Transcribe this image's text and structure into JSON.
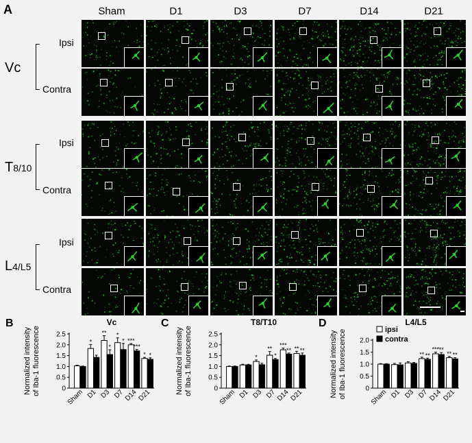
{
  "panel_a": {
    "letter": "A",
    "columns": [
      "Sham",
      "D1",
      "D3",
      "D7",
      "D14",
      "D21"
    ],
    "regions": [
      {
        "name": "Vc",
        "sub": ""
      },
      {
        "name": "T",
        "sub": "8/10"
      },
      {
        "name": "L",
        "sub": "4/L5"
      }
    ],
    "rows": [
      "Ipsi",
      "Contra"
    ],
    "colors": {
      "microglia": "#2ed22e",
      "background": "#050805",
      "frame": "#ffffff"
    }
  },
  "chart_data": [
    {
      "panel": "B",
      "type": "bar",
      "title": "Vc",
      "ylabel": "Normalized intensity of Iba-1 fluorescence",
      "categories": [
        "Sham",
        "D1",
        "D3",
        "D7",
        "D14",
        "D21"
      ],
      "ylim": [
        0,
        2.5
      ],
      "yticks": [
        "0",
        "0.5",
        "1.0",
        "1.5",
        "2.0",
        "2.5"
      ],
      "series": [
        {
          "name": "ipsi",
          "color": "#ffffff",
          "values": [
            1.03,
            1.83,
            2.2,
            2.1,
            2.0,
            1.37
          ],
          "errors": [
            0.03,
            0.18,
            0.22,
            0.22,
            0.06,
            0.05
          ],
          "sig": [
            "",
            "*",
            "**",
            "*",
            "***",
            "*"
          ]
        },
        {
          "name": "contra",
          "color": "#000000",
          "values": [
            1.0,
            1.42,
            1.55,
            1.78,
            1.72,
            1.33
          ],
          "errors": [
            0.02,
            0.1,
            0.22,
            0.28,
            0.07,
            0.07
          ],
          "sig": [
            "",
            "",
            "*",
            "*",
            "***",
            "*"
          ]
        }
      ]
    },
    {
      "panel": "C",
      "type": "bar",
      "title": "T8/T10",
      "ylabel": "Normalized intensity of Iba-1 fluorescence",
      "categories": [
        "Sham",
        "D1",
        "D3",
        "D7",
        "D14",
        "D21"
      ],
      "ylim": [
        0,
        2.5
      ],
      "yticks": [
        "0",
        "0.5",
        "1.0",
        "1.5",
        "2.0",
        "2.5"
      ],
      "series": [
        {
          "name": "ipsi",
          "color": "#ffffff",
          "values": [
            1.0,
            1.07,
            1.23,
            1.52,
            1.77,
            1.6
          ],
          "errors": [
            0.02,
            0.03,
            0.07,
            0.17,
            0.08,
            0.1
          ],
          "sig": [
            "",
            "",
            "*",
            "**",
            "***",
            "**"
          ]
        },
        {
          "name": "contra",
          "color": "#000000",
          "values": [
            1.0,
            1.07,
            1.08,
            1.32,
            1.57,
            1.52
          ],
          "errors": [
            0.02,
            0.03,
            0.07,
            0.05,
            0.05,
            0.1
          ],
          "sig": [
            "",
            "",
            "",
            "*",
            "**",
            "**"
          ]
        }
      ]
    },
    {
      "panel": "D",
      "type": "bar",
      "title": "L4/L5",
      "ylabel": "Normalized intensity of Iba-1 fluorescence",
      "categories": [
        "Sham",
        "D1",
        "D3",
        "D7",
        "D14",
        "D21"
      ],
      "ylim": [
        0,
        2.0
      ],
      "yticks": [
        "0",
        "0.5",
        "1.0",
        "1.5",
        "2.0"
      ],
      "legend": [
        "ipsi",
        "contra"
      ],
      "legend_position": "top-left",
      "series": [
        {
          "name": "ipsi",
          "color": "#ffffff",
          "values": [
            1.0,
            0.98,
            1.05,
            1.23,
            1.43,
            1.27
          ],
          "errors": [
            0.02,
            0.05,
            0.05,
            0.06,
            0.07,
            0.05
          ],
          "sig": [
            "",
            "",
            "",
            "**",
            "***",
            "**"
          ]
        },
        {
          "name": "contra",
          "color": "#000000",
          "values": [
            1.0,
            0.97,
            1.03,
            1.2,
            1.4,
            1.22
          ],
          "errors": [
            0.02,
            0.08,
            0.04,
            0.05,
            0.08,
            0.05
          ],
          "sig": [
            "",
            "",
            "",
            "**",
            "**",
            "**"
          ]
        }
      ]
    }
  ]
}
